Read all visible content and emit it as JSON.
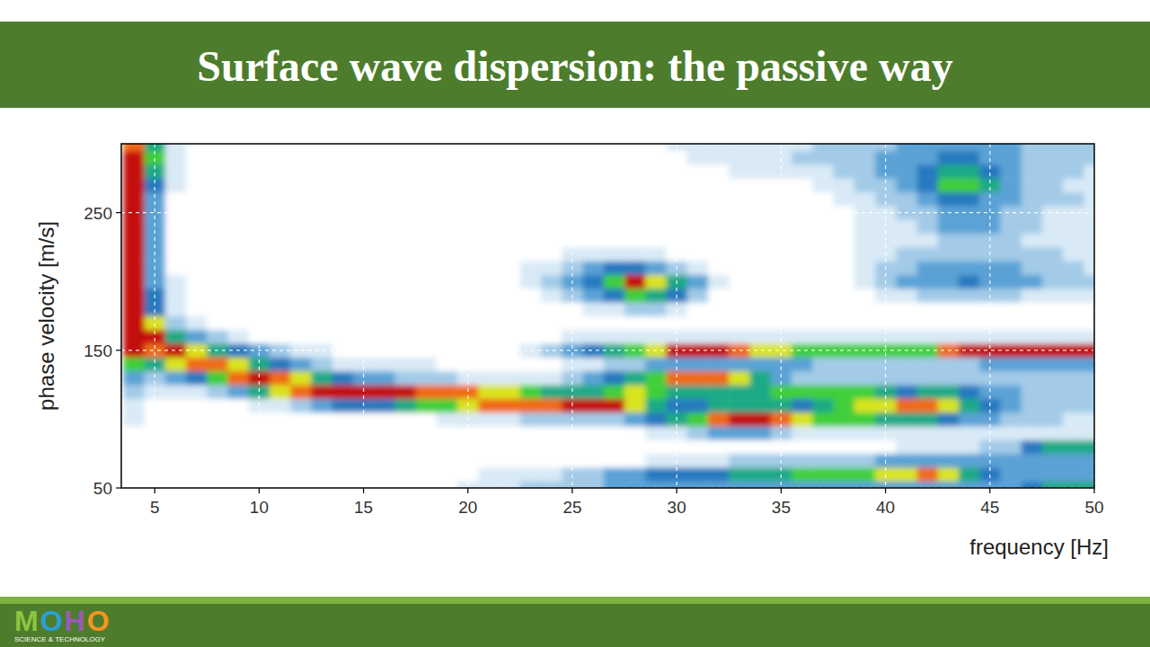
{
  "chart_data": {
    "type": "heatmap",
    "title": "Surface wave dispersion: the passive way",
    "x_label": "frequency [Hz]",
    "y_label": "phase velocity [m/s]",
    "xlim": [
      3.4,
      50
    ],
    "ylim": [
      50,
      300
    ],
    "xticks": [
      5,
      10,
      15,
      20,
      25,
      30,
      35,
      40,
      45,
      50
    ],
    "yticks": [
      50,
      150,
      250
    ],
    "grid": true,
    "color_range": [
      0,
      9
    ],
    "x": [
      4,
      5,
      6,
      7,
      8,
      9,
      10,
      11,
      12,
      13,
      14,
      15,
      16,
      17,
      18,
      19,
      20,
      21,
      22,
      23,
      24,
      25,
      26,
      27,
      28,
      29,
      30,
      31,
      32,
      33,
      34,
      35,
      36,
      37,
      38,
      39,
      40,
      41,
      42,
      43,
      44,
      45,
      46,
      47,
      48,
      49,
      50
    ],
    "y": [
      50,
      60,
      70,
      80,
      90,
      100,
      110,
      120,
      130,
      140,
      150,
      160,
      170,
      180,
      190,
      200,
      210,
      220,
      230,
      240,
      250,
      260,
      270,
      280,
      290,
      300
    ],
    "cells": [
      [
        0,
        0,
        0,
        0,
        0,
        0,
        0,
        0,
        0,
        0,
        0,
        0,
        0,
        0,
        0,
        0,
        1,
        1,
        1,
        2,
        2,
        2,
        2,
        3,
        3,
        3,
        3,
        3,
        3,
        3,
        3,
        3,
        3,
        3,
        3,
        3,
        3,
        3,
        3,
        3,
        3,
        3,
        3,
        4,
        5,
        5,
        5
      ],
      [
        0,
        0,
        0,
        0,
        0,
        0,
        0,
        0,
        0,
        0,
        0,
        0,
        0,
        0,
        0,
        0,
        0,
        1,
        1,
        1,
        1,
        2,
        2,
        3,
        3,
        4,
        4,
        4,
        4,
        5,
        5,
        5,
        6,
        6,
        6,
        6,
        7,
        7,
        8,
        7,
        5,
        4,
        3,
        3,
        3,
        3,
        3
      ],
      [
        0,
        0,
        0,
        0,
        0,
        0,
        0,
        0,
        0,
        0,
        0,
        0,
        0,
        0,
        0,
        0,
        0,
        0,
        0,
        0,
        0,
        0,
        0,
        0,
        0,
        1,
        1,
        1,
        1,
        2,
        2,
        2,
        2,
        2,
        2,
        2,
        3,
        3,
        3,
        3,
        3,
        3,
        3,
        3,
        3,
        3,
        3
      ],
      [
        0,
        0,
        0,
        0,
        0,
        0,
        0,
        0,
        0,
        0,
        0,
        0,
        0,
        0,
        0,
        0,
        0,
        0,
        0,
        0,
        0,
        0,
        0,
        0,
        0,
        0,
        0,
        0,
        0,
        0,
        0,
        0,
        0,
        0,
        0,
        0,
        0,
        1,
        1,
        1,
        1,
        2,
        2,
        4,
        5,
        5,
        5
      ],
      [
        0,
        0,
        0,
        0,
        0,
        0,
        0,
        0,
        0,
        0,
        0,
        0,
        0,
        0,
        0,
        0,
        0,
        0,
        0,
        0,
        0,
        0,
        0,
        0,
        0,
        1,
        1,
        2,
        3,
        3,
        3,
        2,
        1,
        1,
        1,
        1,
        1,
        1,
        1,
        1,
        1,
        1,
        1,
        1,
        1,
        1,
        1
      ],
      [
        1,
        0,
        0,
        0,
        0,
        0,
        0,
        0,
        0,
        0,
        0,
        0,
        0,
        0,
        0,
        1,
        1,
        1,
        1,
        2,
        2,
        2,
        2,
        2,
        3,
        4,
        5,
        6,
        8,
        9,
        9,
        8,
        7,
        6,
        6,
        6,
        5,
        5,
        5,
        4,
        3,
        3,
        2,
        2,
        2,
        1,
        1
      ],
      [
        1,
        0,
        0,
        0,
        0,
        0,
        1,
        1,
        2,
        3,
        4,
        4,
        4,
        5,
        6,
        6,
        7,
        8,
        8,
        8,
        8,
        9,
        9,
        9,
        7,
        5,
        4,
        4,
        5,
        5,
        5,
        5,
        4,
        5,
        6,
        7,
        7,
        8,
        8,
        7,
        5,
        4,
        3,
        2,
        2,
        2,
        2
      ],
      [
        2,
        1,
        1,
        1,
        2,
        3,
        5,
        7,
        8,
        9,
        9,
        9,
        9,
        9,
        8,
        8,
        8,
        7,
        7,
        6,
        5,
        5,
        5,
        6,
        7,
        6,
        5,
        5,
        5,
        5,
        5,
        6,
        6,
        6,
        6,
        6,
        5,
        4,
        5,
        5,
        4,
        3,
        3,
        2,
        2,
        2,
        2
      ],
      [
        3,
        2,
        3,
        4,
        6,
        8,
        9,
        8,
        7,
        5,
        4,
        3,
        3,
        2,
        2,
        2,
        1,
        1,
        1,
        1,
        1,
        2,
        3,
        4,
        5,
        6,
        8,
        8,
        8,
        7,
        5,
        3,
        2,
        2,
        2,
        2,
        2,
        2,
        2,
        2,
        2,
        2,
        2,
        2,
        2,
        2,
        2
      ],
      [
        6,
        5,
        7,
        8,
        8,
        7,
        5,
        4,
        3,
        2,
        1,
        1,
        1,
        1,
        1,
        0,
        0,
        0,
        0,
        0,
        0,
        1,
        1,
        2,
        2,
        3,
        3,
        3,
        3,
        3,
        3,
        3,
        3,
        2,
        2,
        2,
        2,
        2,
        2,
        2,
        2,
        3,
        3,
        3,
        3,
        3,
        3
      ],
      [
        9,
        8,
        9,
        7,
        5,
        4,
        3,
        2,
        1,
        1,
        0,
        0,
        0,
        0,
        0,
        0,
        0,
        0,
        0,
        1,
        2,
        3,
        4,
        5,
        6,
        7,
        9,
        9,
        9,
        8,
        7,
        7,
        6,
        6,
        6,
        6,
        6,
        6,
        6,
        8,
        9,
        9,
        9,
        9,
        9,
        9,
        9
      ],
      [
        9,
        9,
        5,
        3,
        2,
        1,
        0,
        0,
        0,
        0,
        0,
        0,
        0,
        0,
        0,
        0,
        0,
        0,
        0,
        0,
        0,
        1,
        1,
        1,
        1,
        1,
        1,
        1,
        1,
        1,
        1,
        1,
        1,
        1,
        1,
        1,
        1,
        1,
        1,
        1,
        1,
        1,
        1,
        1,
        1,
        1,
        1
      ],
      [
        9,
        7,
        2,
        1,
        0,
        0,
        0,
        0,
        0,
        0,
        0,
        0,
        0,
        0,
        0,
        0,
        0,
        0,
        0,
        0,
        0,
        0,
        0,
        0,
        0,
        0,
        0,
        0,
        0,
        0,
        0,
        0,
        0,
        0,
        0,
        0,
        0,
        0,
        0,
        0,
        0,
        0,
        0,
        0,
        0,
        0,
        0
      ],
      [
        9,
        4,
        1,
        0,
        0,
        0,
        0,
        0,
        0,
        0,
        0,
        0,
        0,
        0,
        0,
        0,
        0,
        0,
        0,
        0,
        0,
        0,
        1,
        1,
        2,
        2,
        1,
        0,
        0,
        0,
        0,
        0,
        0,
        0,
        0,
        0,
        0,
        0,
        0,
        0,
        0,
        0,
        0,
        0,
        0,
        0,
        0
      ],
      [
        9,
        4,
        1,
        0,
        0,
        0,
        0,
        0,
        0,
        0,
        0,
        0,
        0,
        0,
        0,
        0,
        0,
        0,
        0,
        0,
        1,
        2,
        3,
        4,
        6,
        5,
        4,
        2,
        0,
        0,
        0,
        0,
        0,
        0,
        0,
        0,
        1,
        1,
        2,
        2,
        2,
        2,
        2,
        1,
        1,
        1,
        1
      ],
      [
        9,
        3,
        1,
        0,
        0,
        0,
        0,
        0,
        0,
        0,
        0,
        0,
        0,
        0,
        0,
        0,
        0,
        0,
        0,
        1,
        2,
        3,
        4,
        6,
        9,
        7,
        5,
        3,
        1,
        0,
        0,
        0,
        0,
        0,
        0,
        1,
        2,
        3,
        3,
        3,
        4,
        3,
        3,
        3,
        2,
        2,
        2
      ],
      [
        9,
        3,
        0,
        0,
        0,
        0,
        0,
        0,
        0,
        0,
        0,
        0,
        0,
        0,
        0,
        0,
        0,
        0,
        0,
        1,
        1,
        2,
        3,
        4,
        4,
        3,
        2,
        1,
        0,
        0,
        0,
        0,
        0,
        0,
        0,
        1,
        2,
        2,
        3,
        3,
        3,
        3,
        3,
        2,
        2,
        2,
        1
      ],
      [
        9,
        3,
        0,
        0,
        0,
        0,
        0,
        0,
        0,
        0,
        0,
        0,
        0,
        0,
        0,
        0,
        0,
        0,
        0,
        0,
        0,
        1,
        1,
        1,
        1,
        1,
        0,
        0,
        0,
        0,
        0,
        0,
        0,
        0,
        0,
        1,
        1,
        2,
        2,
        2,
        2,
        2,
        2,
        2,
        2,
        1,
        1
      ],
      [
        9,
        3,
        0,
        0,
        0,
        0,
        0,
        0,
        0,
        0,
        0,
        0,
        0,
        0,
        0,
        0,
        0,
        0,
        0,
        0,
        0,
        0,
        0,
        0,
        0,
        0,
        0,
        0,
        0,
        0,
        0,
        0,
        0,
        0,
        0,
        1,
        1,
        1,
        1,
        2,
        2,
        2,
        2,
        1,
        1,
        1,
        1
      ],
      [
        9,
        3,
        0,
        0,
        0,
        0,
        0,
        0,
        0,
        0,
        0,
        0,
        0,
        0,
        0,
        0,
        0,
        0,
        0,
        0,
        0,
        0,
        0,
        0,
        0,
        0,
        0,
        0,
        0,
        0,
        0,
        0,
        0,
        0,
        0,
        1,
        1,
        1,
        2,
        3,
        3,
        3,
        2,
        2,
        1,
        1,
        1
      ],
      [
        9,
        3,
        0,
        0,
        0,
        0,
        0,
        0,
        0,
        0,
        0,
        0,
        0,
        0,
        0,
        0,
        0,
        0,
        0,
        0,
        0,
        0,
        0,
        0,
        0,
        0,
        0,
        0,
        0,
        0,
        0,
        0,
        0,
        0,
        0,
        1,
        1,
        2,
        2,
        3,
        3,
        3,
        2,
        2,
        1,
        1,
        1
      ],
      [
        9,
        3,
        0,
        0,
        0,
        0,
        0,
        0,
        0,
        0,
        0,
        0,
        0,
        0,
        0,
        0,
        0,
        0,
        0,
        0,
        0,
        0,
        0,
        0,
        0,
        0,
        0,
        0,
        0,
        0,
        0,
        0,
        0,
        0,
        1,
        1,
        2,
        2,
        3,
        4,
        4,
        3,
        3,
        2,
        2,
        2,
        1
      ],
      [
        9,
        4,
        1,
        0,
        0,
        0,
        0,
        0,
        0,
        0,
        0,
        0,
        0,
        0,
        0,
        0,
        0,
        0,
        0,
        0,
        0,
        0,
        0,
        0,
        0,
        0,
        0,
        0,
        0,
        0,
        0,
        0,
        0,
        1,
        1,
        2,
        2,
        3,
        4,
        6,
        6,
        5,
        3,
        2,
        2,
        1,
        1
      ],
      [
        9,
        5,
        1,
        0,
        0,
        0,
        0,
        0,
        0,
        0,
        0,
        0,
        0,
        0,
        0,
        0,
        0,
        0,
        0,
        0,
        0,
        0,
        0,
        0,
        0,
        0,
        0,
        0,
        0,
        1,
        1,
        1,
        1,
        1,
        2,
        2,
        3,
        3,
        4,
        5,
        5,
        4,
        3,
        2,
        2,
        2,
        1
      ],
      [
        9,
        6,
        1,
        0,
        0,
        0,
        0,
        0,
        0,
        0,
        0,
        0,
        0,
        0,
        0,
        0,
        0,
        0,
        0,
        0,
        0,
        0,
        0,
        0,
        0,
        0,
        0,
        1,
        1,
        1,
        1,
        1,
        2,
        2,
        2,
        2,
        3,
        3,
        3,
        4,
        4,
        3,
        3,
        2,
        2,
        2,
        2
      ],
      [
        8,
        5,
        1,
        0,
        0,
        0,
        0,
        0,
        0,
        0,
        0,
        0,
        0,
        0,
        0,
        0,
        0,
        0,
        0,
        0,
        0,
        0,
        0,
        0,
        0,
        0,
        1,
        1,
        1,
        1,
        1,
        1,
        1,
        2,
        2,
        2,
        2,
        3,
        3,
        3,
        3,
        3,
        3,
        2,
        2,
        2,
        2
      ]
    ]
  },
  "logo": {
    "name": "MOHO",
    "tagline": "SCIENCE & TECHNOLOGY"
  }
}
